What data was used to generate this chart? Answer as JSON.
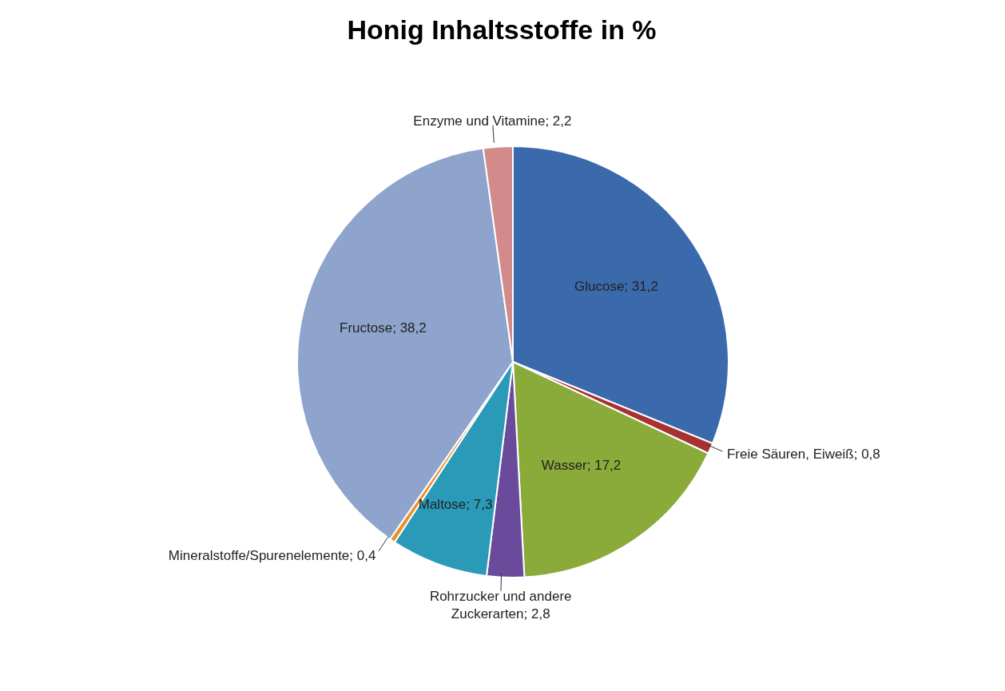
{
  "chart_data": {
    "type": "pie",
    "title": "Honig Inhaltsstoffe in %",
    "categories": [
      "Glucose",
      "Freie Säuren, Eiweiß",
      "Wasser",
      "Rohrzucker und andere Zuckerarten",
      "Maltose",
      "Mineralstoffe/Spurenelemente",
      "Fructose",
      "Enzyme und Vitamine"
    ],
    "values": [
      31.2,
      0.8,
      17.2,
      2.8,
      7.3,
      0.4,
      38.2,
      2.2
    ],
    "value_labels": [
      "31,2",
      "0,8",
      "17,2",
      "2,8",
      "7,3",
      "0,4",
      "38,2",
      "2,2"
    ],
    "colors": [
      "#3a6aac",
      "#a83232",
      "#8aaa3a",
      "#6a4a9a",
      "#2a9ab8",
      "#e8902a",
      "#8ea4cc",
      "#d28a8a"
    ],
    "legend": false
  }
}
